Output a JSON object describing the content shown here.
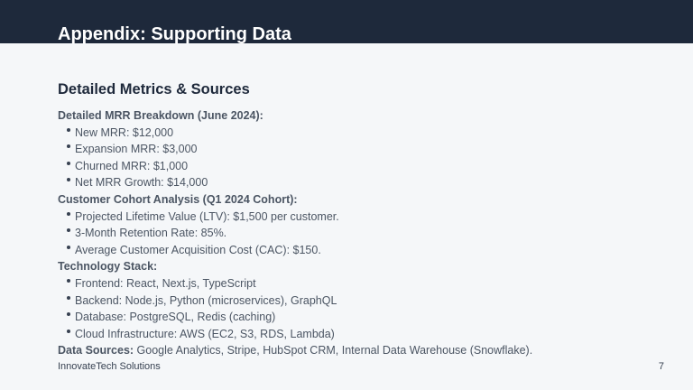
{
  "slide": {
    "title": "Appendix: Supporting Data",
    "section_heading": "Detailed Metrics & Sources",
    "colors": {
      "header_band": "#1e293b",
      "background": "#f5f7f9",
      "text": "#4b5563"
    }
  },
  "groups": [
    {
      "heading": "Detailed MRR Breakdown (June 2024):",
      "items": [
        "New MRR: $12,000",
        "Expansion MRR: $3,000",
        "Churned MRR: $1,000",
        "Net MRR Growth: $14,000"
      ]
    },
    {
      "heading": "Customer Cohort Analysis (Q1 2024 Cohort):",
      "items": [
        "Projected Lifetime Value (LTV): $1,500 per customer.",
        "3-Month Retention Rate: 85%.",
        "Average Customer Acquisition Cost (CAC): $150."
      ]
    },
    {
      "heading": "Technology Stack:",
      "items": [
        "Frontend: React, Next.js, TypeScript",
        "Backend: Node.js, Python (microservices), GraphQL",
        "Database: PostgreSQL, Redis (caching)",
        "Cloud Infrastructure: AWS (EC2, S3, RDS, Lambda)"
      ]
    }
  ],
  "data_sources": {
    "label": "Data Sources:",
    "text": " Google Analytics, Stripe, HubSpot CRM, Internal Data Warehouse (Snowflake)."
  },
  "footer": {
    "company": "InnovateTech Solutions",
    "page_number": "7"
  }
}
